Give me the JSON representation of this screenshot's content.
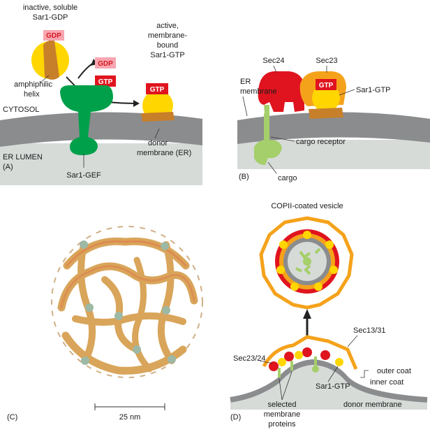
{
  "panel_a": {
    "panel_label": "(A)",
    "inactive_line1": "inactive, soluble",
    "inactive_line2": "Sar1-GDP",
    "gdp_badge": "GDP",
    "amphiphilic_line1": "amphiphilic",
    "amphiphilic_line2": "helix",
    "gdp_out_badge": "GDP",
    "gtp_in_badge": "GTP",
    "active_line1": "active,",
    "active_line2": "membrane-",
    "active_line3": "bound",
    "active_line4": "Sar1-GTP",
    "gtp_badge": "GTP",
    "cytosol": "CYTOSOL",
    "er_lumen": "ER LUMEN",
    "donor_line1": "donor",
    "donor_line2": "membrane (ER)",
    "gef": "Sar1-GEF"
  },
  "panel_b": {
    "panel_label": "(B)",
    "sec24": "Sec24",
    "sec23": "Sec23",
    "gtp_badge": "GTP",
    "sar1_gtp": "Sar1-GTP",
    "er_line1": "ER",
    "er_line2": "membrane",
    "cargo_receptor": "cargo receptor",
    "cargo": "cargo"
  },
  "panel_c": {
    "panel_label": "(C)",
    "scale": "25 nm"
  },
  "panel_d": {
    "panel_label": "(D)",
    "vesicle_title": "COPII-coated vesicle",
    "sec13_31": "Sec13/31",
    "sec23_24": "Sec23/24",
    "sar1_gtp": "Sar1-GTP",
    "outer_coat": "outer coat",
    "inner_coat": "inner coat",
    "selected_line1": "selected",
    "selected_line2": "membrane",
    "selected_line3": "proteins",
    "donor_membrane": "donor membrane"
  },
  "colors": {
    "sar1_yellow": "#ffd600",
    "gef_green": "#00a04a",
    "sec24_red": "#e0141e",
    "sec23_orange": "#f5a21b",
    "membrane_gray": "#8a8c8e",
    "lumen_gray": "#d6dbd8",
    "cargo_green": "#a5cf6a",
    "cage_tan": "#d9a55a"
  }
}
